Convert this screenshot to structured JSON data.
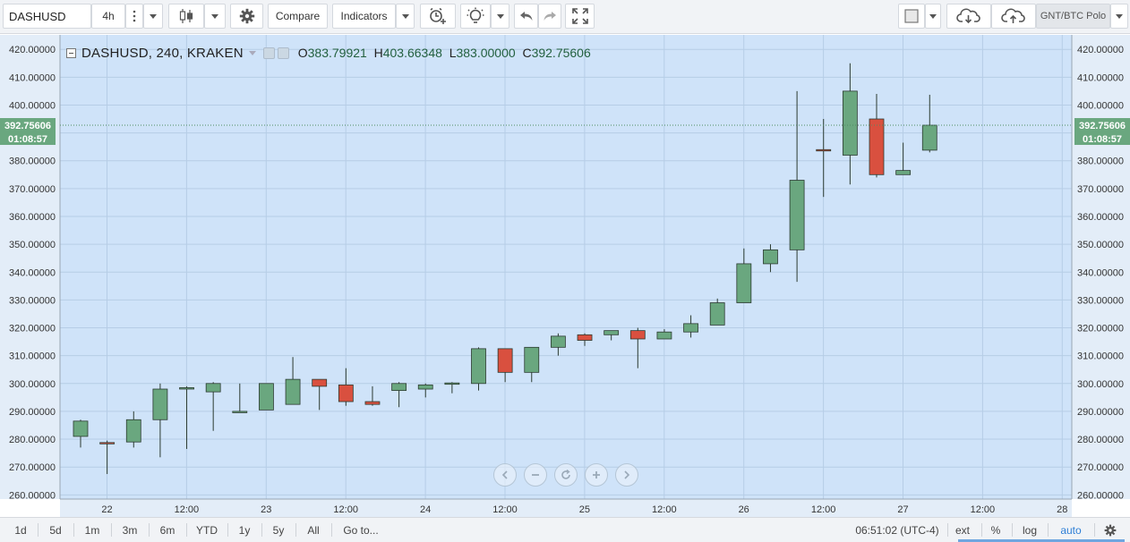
{
  "toolbar": {
    "symbol": "DASHUSD",
    "interval": "4h",
    "compare_label": "Compare",
    "indicators_label": "Indicators",
    "right_symbol": "GNT/BTC Polo"
  },
  "legend": {
    "title": "DASHUSD, 240, KRAKEN",
    "open_key": "O",
    "open": "383.79921",
    "high_key": "H",
    "high": "403.66348",
    "low_key": "L",
    "low": "383.00000",
    "close_key": "C",
    "close": "392.75606"
  },
  "price_marker": {
    "price": "392.75606",
    "countdown": "01:08:57"
  },
  "bottom": {
    "ranges": [
      "1d",
      "5d",
      "1m",
      "3m",
      "6m",
      "YTD",
      "1y",
      "5y",
      "All"
    ],
    "goto_label": "Go to...",
    "clock": "06:51:02 (UTC-4)",
    "ext": "ext",
    "percent": "%",
    "log": "log",
    "auto": "auto"
  },
  "colors": {
    "background": "#cfe3f9",
    "up": "#6aa77f",
    "down": "#d9503f",
    "grid": "#b6cde6",
    "price_line": "#4e8d63"
  },
  "chart_data": {
    "type": "candlestick",
    "y_tick_labels": [
      "420.00000",
      "410.00000",
      "400.00000",
      "390.00000",
      "380.00000",
      "370.00000",
      "360.00000",
      "350.00000",
      "340.00000",
      "330.00000",
      "320.00000",
      "310.00000",
      "300.00000",
      "290.00000",
      "280.00000",
      "270.00000",
      "260.00000"
    ],
    "y_ticks": [
      420,
      410,
      400,
      390,
      380,
      370,
      360,
      350,
      340,
      330,
      320,
      310,
      300,
      290,
      280,
      270,
      260
    ],
    "ylim": [
      258.5,
      425.2
    ],
    "x_tick_labels": [
      "22",
      "12:00",
      "23",
      "12:00",
      "24",
      "12:00",
      "25",
      "12:00",
      "26",
      "12:00",
      "27",
      "12:00",
      "28"
    ],
    "candles": [
      {
        "o": 281,
        "h": 287,
        "l": 277,
        "c": 286.5
      },
      {
        "o": 278.8,
        "h": 279.5,
        "l": 267.5,
        "c": 278.5
      },
      {
        "o": 279,
        "h": 290,
        "l": 277,
        "c": 287
      },
      {
        "o": 287,
        "h": 300,
        "l": 273.5,
        "c": 298
      },
      {
        "o": 298,
        "h": 299,
        "l": 276.5,
        "c": 298.5
      },
      {
        "o": 297,
        "h": 300.5,
        "l": 283,
        "c": 300
      },
      {
        "o": 290,
        "h": 300,
        "l": 290,
        "c": 290
      },
      {
        "o": 290.5,
        "h": 300,
        "l": 290.5,
        "c": 300
      },
      {
        "o": 292.5,
        "h": 309.5,
        "l": 292.5,
        "c": 301.5
      },
      {
        "o": 301.5,
        "h": 301.5,
        "l": 290.5,
        "c": 299
      },
      {
        "o": 299.5,
        "h": 305.5,
        "l": 292,
        "c": 293.5
      },
      {
        "o": 293.5,
        "h": 299,
        "l": 292,
        "c": 292.5
      },
      {
        "o": 297.5,
        "h": 300.5,
        "l": 291.5,
        "c": 300
      },
      {
        "o": 298,
        "h": 300,
        "l": 295,
        "c": 299.5
      },
      {
        "o": 300,
        "h": 300.5,
        "l": 296.5,
        "c": 300.2
      },
      {
        "o": 300,
        "h": 313,
        "l": 297.5,
        "c": 312.5
      },
      {
        "o": 312.5,
        "h": 312.5,
        "l": 300.5,
        "c": 304
      },
      {
        "o": 304,
        "h": 313,
        "l": 300.5,
        "c": 313
      },
      {
        "o": 313,
        "h": 318,
        "l": 310,
        "c": 317
      },
      {
        "o": 317.5,
        "h": 318,
        "l": 313.5,
        "c": 315.5
      },
      {
        "o": 317.5,
        "h": 319,
        "l": 315.5,
        "c": 319
      },
      {
        "o": 319,
        "h": 320,
        "l": 305.5,
        "c": 316
      },
      {
        "o": 316,
        "h": 319.5,
        "l": 316,
        "c": 318.5
      },
      {
        "o": 318.5,
        "h": 324.5,
        "l": 316.5,
        "c": 321.5
      },
      {
        "o": 321,
        "h": 330.5,
        "l": 321,
        "c": 329
      },
      {
        "o": 329,
        "h": 348.5,
        "l": 329,
        "c": 343
      },
      {
        "o": 343,
        "h": 350,
        "l": 340,
        "c": 348
      },
      {
        "o": 348,
        "h": 405,
        "l": 336.5,
        "c": 373
      },
      {
        "o": 384,
        "h": 395,
        "l": 367,
        "c": 383.8
      },
      {
        "o": 382,
        "h": 415,
        "l": 371.5,
        "c": 405
      },
      {
        "o": 395,
        "h": 404,
        "l": 374,
        "c": 375
      },
      {
        "o": 375,
        "h": 386.5,
        "l": 375,
        "c": 376.5
      },
      {
        "o": 383.8,
        "h": 403.7,
        "l": 383,
        "c": 392.76
      }
    ],
    "last_price": 392.75606
  }
}
